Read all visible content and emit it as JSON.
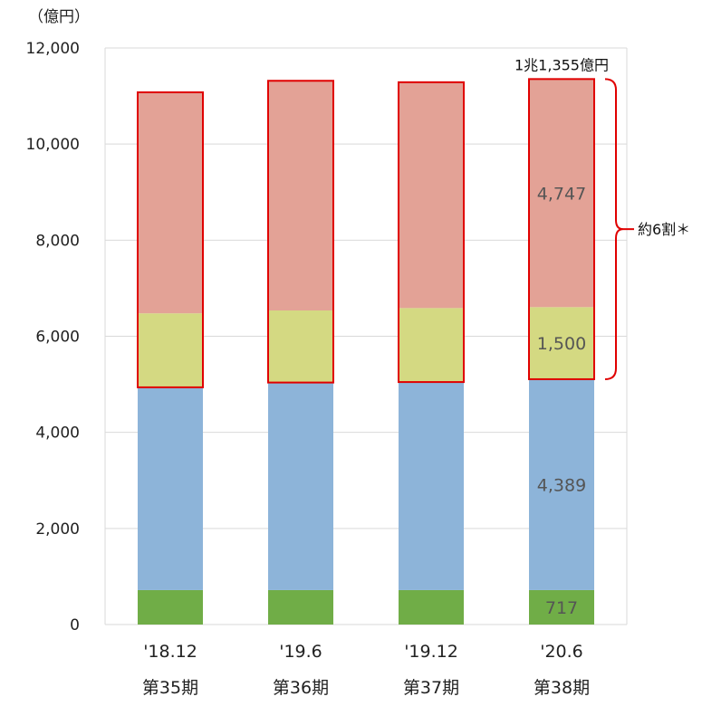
{
  "chart_data": {
    "type": "bar",
    "stacked": true,
    "unit_label": "（億円）",
    "categories": [
      {
        "period": "'18.12",
        "term": "第35期"
      },
      {
        "period": "'19.6",
        "term": "第36期"
      },
      {
        "period": "'19.12",
        "term": "第37期"
      },
      {
        "period": "'20.6",
        "term": "第38期"
      }
    ],
    "series": [
      {
        "color": "#70ad47",
        "values": [
          717,
          717,
          717,
          717
        ]
      },
      {
        "color": "#8db4d9",
        "values": [
          4220,
          4320,
          4330,
          4389
        ]
      },
      {
        "color": "#d4d982",
        "values": [
          1540,
          1500,
          1540,
          1500
        ]
      },
      {
        "color": "#e3a296",
        "values": [
          4600,
          4780,
          4700,
          4747
        ]
      }
    ],
    "ylim": [
      0,
      12000
    ],
    "yticks": [
      0,
      2000,
      4000,
      6000,
      8000,
      10000,
      12000
    ],
    "ytick_labels": [
      "0",
      "2,000",
      "4,000",
      "6,000",
      "8,000",
      "10,000",
      "12,000"
    ],
    "grid": true,
    "data_labels": [
      {
        "category": 3,
        "series": 0,
        "text": "717"
      },
      {
        "category": 3,
        "series": 1,
        "text": "4,389"
      },
      {
        "category": 3,
        "series": 2,
        "text": "1,500"
      },
      {
        "category": 3,
        "series": 3,
        "text": "4,747"
      }
    ],
    "highlight_color": "#e00000",
    "highlight_series": [
      2,
      3
    ],
    "total_label": {
      "category": 3,
      "text": "1兆1,355億円"
    },
    "bracket_label": "約6割＊"
  }
}
